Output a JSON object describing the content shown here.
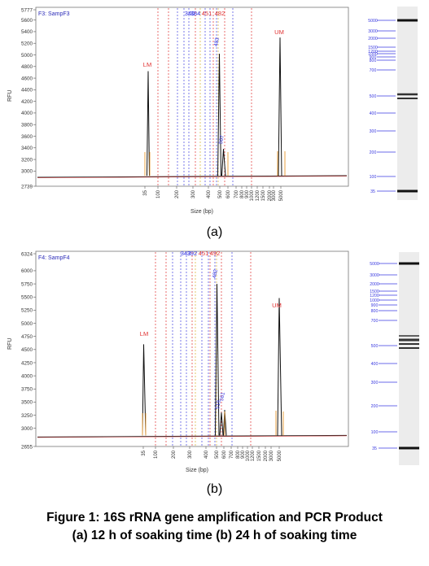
{
  "panels": [
    {
      "id": "a",
      "sample_label": "F3: SampF3",
      "sublabel": "(a)",
      "ylabel": "RFU",
      "xlabel": "Size (bp)",
      "y_ticks": [
        "5777",
        "5600",
        "5400",
        "5200",
        "5000",
        "4800",
        "4600",
        "4400",
        "4200",
        "4000",
        "3800",
        "3600",
        "3400",
        "3200",
        "3000",
        "2739"
      ],
      "x_ticks": [
        "35",
        "100",
        "200",
        "300",
        "400",
        "500",
        "600",
        "700",
        "800",
        "900",
        "1000",
        "1200",
        "1500",
        "2000",
        "3000",
        "5000"
      ],
      "peak_labels": [
        {
          "text": "LM",
          "color": "#e03030"
        },
        {
          "text": "UM",
          "color": "#e03030"
        },
        {
          "text": "483",
          "color": "#3030e0"
        },
        {
          "text": "507",
          "color": "#3030e0"
        },
        {
          "text": "340",
          "color": "#3030e0"
        },
        {
          "text": "384",
          "color": "#3030e0"
        },
        {
          "text": "451",
          "color": "#e03030"
        },
        {
          "text": "482",
          "color": "#e03030"
        }
      ],
      "ladder_labels": [
        "5000",
        "3000",
        "2000",
        "1500",
        "1200",
        "1000",
        "900",
        "800",
        "700",
        "500",
        "400",
        "300",
        "200",
        "100",
        "35"
      ]
    },
    {
      "id": "b",
      "sample_label": "F4: SampF4",
      "sublabel": "(b)",
      "ylabel": "RFU",
      "xlabel": "Size (bp)",
      "y_ticks": [
        "6324",
        "6000",
        "5750",
        "5500",
        "5250",
        "5000",
        "4750",
        "4500",
        "4250",
        "4000",
        "3750",
        "3500",
        "3250",
        "3000",
        "2655"
      ],
      "x_ticks": [
        "35",
        "100",
        "200",
        "300",
        "400",
        "500",
        "600",
        "700",
        "800",
        "900",
        "1000",
        "1200",
        "1500",
        "2000",
        "3000",
        "5000"
      ],
      "peak_labels": [
        {
          "text": "LM",
          "color": "#e03030"
        },
        {
          "text": "UM",
          "color": "#e03030"
        },
        {
          "text": "482",
          "color": "#3030e0"
        },
        {
          "text": "519",
          "color": "#3030e0"
        },
        {
          "text": "561",
          "color": "#3030e0"
        },
        {
          "text": "343",
          "color": "#3030e0"
        },
        {
          "text": "392",
          "color": "#3030e0"
        },
        {
          "text": "451",
          "color": "#e03030"
        },
        {
          "text": "492",
          "color": "#e03030"
        }
      ],
      "ladder_labels": [
        "5000",
        "3000",
        "2000",
        "1500",
        "1200",
        "1000",
        "900",
        "800",
        "700",
        "500",
        "400",
        "300",
        "200",
        "100",
        "35"
      ]
    }
  ],
  "caption": {
    "line1": "Figure 1: 16S rRNA gene amplification and PCR Product",
    "line2": "(a) 12 h of soaking time (b) 24 h of soaking time"
  },
  "chart_data": [
    {
      "type": "line",
      "title": "F3: SampF3",
      "xlabel": "Size (bp)",
      "ylabel": "RFU",
      "ylim": [
        2739,
        5777
      ],
      "x_axis": "nonlinear (electropherogram size scale)",
      "series": [
        {
          "name": "",
          "x": [
            35,
            483,
            507,
            5000
          ],
          "y": [
            4720,
            5020,
            3380,
            5300
          ]
        }
      ],
      "baseline": 2920,
      "annotations": [
        "LM",
        "UM",
        "483",
        "507",
        "340",
        "384",
        "451",
        "482"
      ]
    },
    {
      "type": "line",
      "title": "F4: SampF4",
      "xlabel": "Size (bp)",
      "ylabel": "RFU",
      "ylim": [
        2655,
        6324
      ],
      "x_axis": "nonlinear (electropherogram size scale)",
      "series": [
        {
          "name": "",
          "x": [
            35,
            482,
            519,
            561,
            5000
          ],
          "y": [
            4600,
            5750,
            3300,
            3350,
            5480
          ]
        }
      ],
      "baseline": 2865,
      "annotations": [
        "LM",
        "UM",
        "482",
        "519",
        "561",
        "343",
        "392",
        "451",
        "492"
      ]
    }
  ]
}
